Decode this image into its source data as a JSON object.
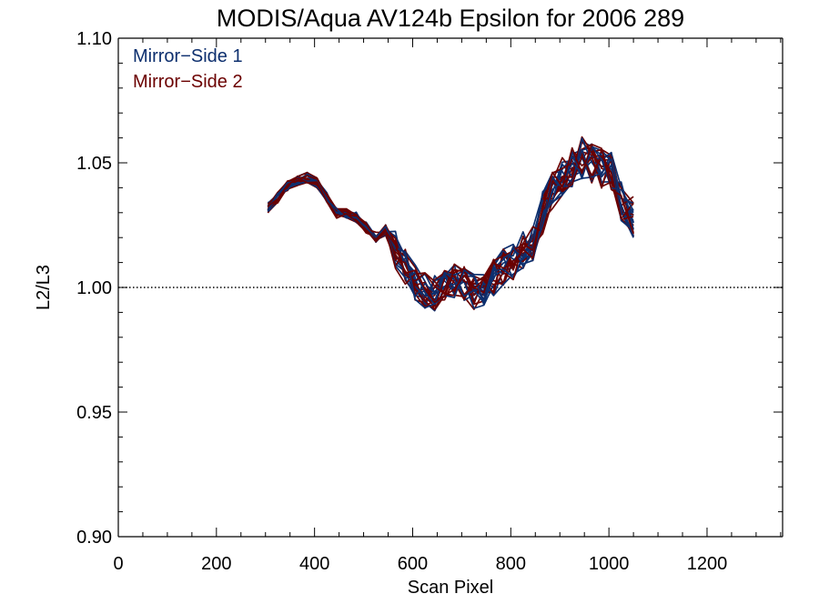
{
  "chart_data": {
    "type": "line",
    "title": "MODIS/Aqua AV124b Epsilon for 2006 289",
    "xlabel": "Scan Pixel",
    "ylabel": "L2/L3",
    "xlim": [
      0,
      1354
    ],
    "ylim": [
      0.9,
      1.1
    ],
    "xticks": [
      "0",
      "200",
      "400",
      "600",
      "800",
      "1000",
      "1200"
    ],
    "xtick_values": [
      0,
      200,
      400,
      600,
      800,
      1000,
      1200
    ],
    "yticks": [
      "0.90",
      "0.95",
      "1.00",
      "1.05",
      "1.10"
    ],
    "ytick_values": [
      0.9,
      0.95,
      1.0,
      1.05,
      1.1
    ],
    "reference_line": 1.0,
    "legend_position": "top-left",
    "series": [
      {
        "name": "Mirror−Side 1",
        "color": "#0d2f6e"
      },
      {
        "name": "Mirror−Side 2",
        "color": "#6b0000"
      }
    ],
    "x": [
      305,
      325,
      345,
      365,
      385,
      405,
      425,
      445,
      465,
      485,
      505,
      525,
      545,
      565,
      585,
      605,
      625,
      645,
      665,
      685,
      705,
      725,
      745,
      765,
      785,
      805,
      825,
      845,
      865,
      885,
      905,
      925,
      945,
      965,
      985,
      1005,
      1025,
      1050
    ],
    "base_profile": [
      1.032,
      1.036,
      1.041,
      1.043,
      1.044,
      1.042,
      1.036,
      1.03,
      1.03,
      1.028,
      1.024,
      1.02,
      1.023,
      1.015,
      1.008,
      1.002,
      0.999,
      0.998,
      1.0,
      1.003,
      1.002,
      0.998,
      1.0,
      1.004,
      1.008,
      1.01,
      1.015,
      1.018,
      1.03,
      1.04,
      1.045,
      1.048,
      1.052,
      1.05,
      1.048,
      1.046,
      1.035,
      1.028
    ]
  }
}
